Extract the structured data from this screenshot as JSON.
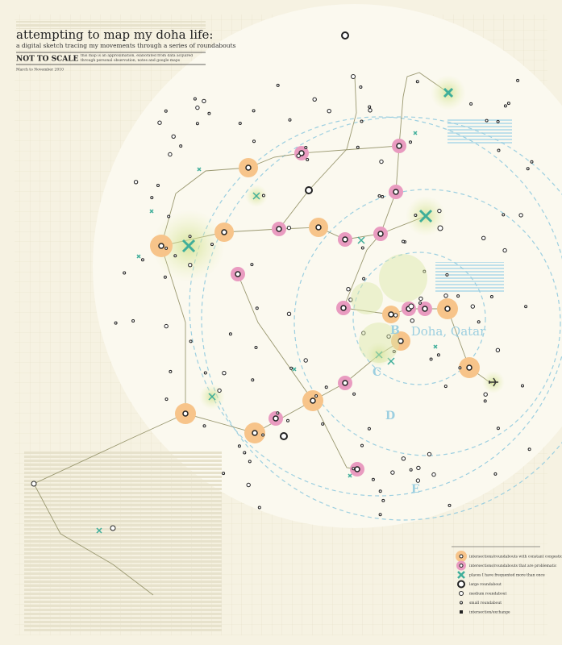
{
  "header": {
    "title": "attempting to map my doha life:",
    "subtitle": "a digital sketch tracing my movements through a series of roundabouts",
    "stamp": "NOT TO SCALE",
    "note": "this map is an approximation, elaborated from data acquired through personal observation, notes and google maps",
    "dates": "March to November 2010"
  },
  "map": {
    "city": "Doha, Qatar",
    "rings": [
      "B",
      "C",
      "D",
      "E"
    ]
  },
  "legend": [
    "intersections/roundabouts with constant congestion",
    "intersections/roundabouts that are problematic",
    "places I have frequented more than once",
    "large roundabout",
    "medium roundabout",
    "small roundabout",
    "intersection/exchange"
  ]
}
